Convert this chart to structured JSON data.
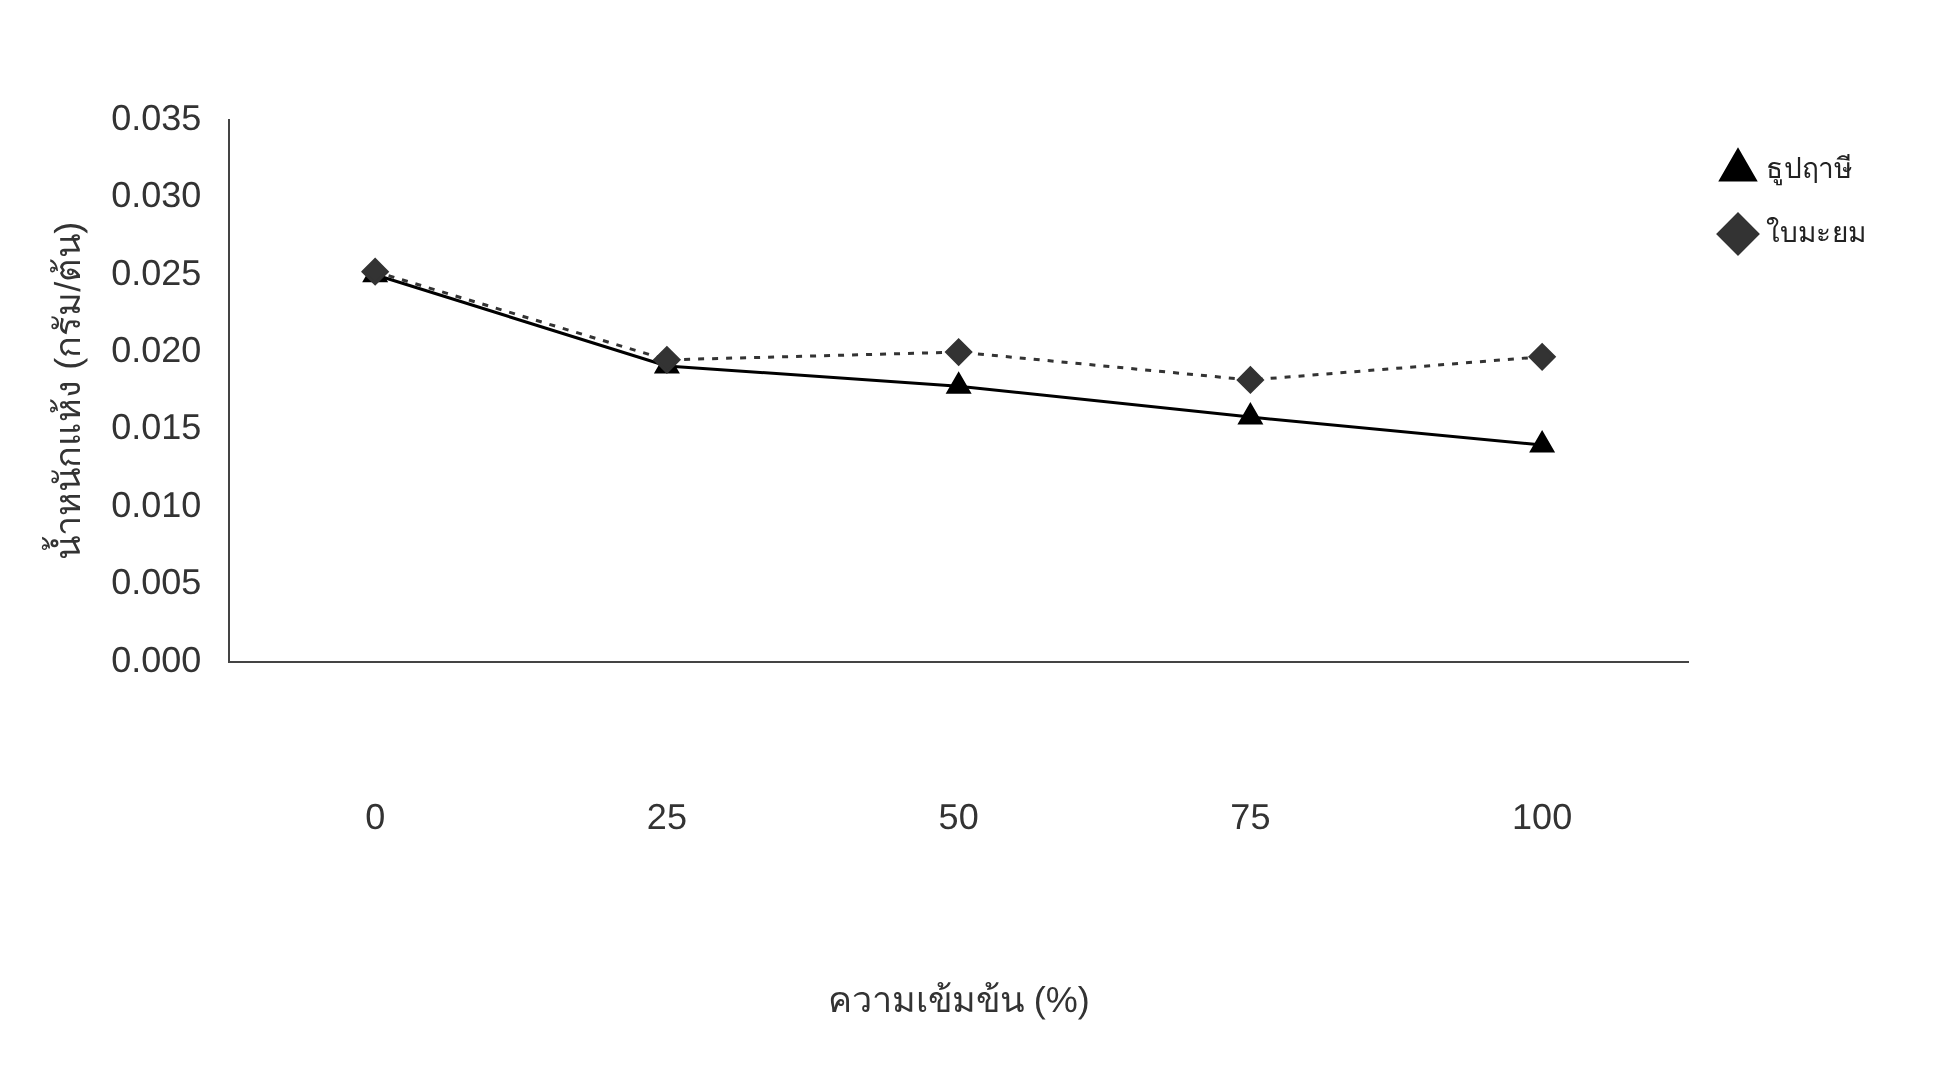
{
  "chart_data": {
    "type": "line",
    "xlabel": "ความเข้มข้น (%)",
    "ylabel": "น้ำหนักแห้ง (กรัม/ต้น)",
    "categories": [
      "0",
      "25",
      "50",
      "75",
      "100"
    ],
    "series": [
      {
        "name": "ธูปฤาษี",
        "color": "#000000",
        "values": [
          0.025,
          0.0191,
          0.0178,
          0.0158,
          0.014
        ],
        "marker": "triangle",
        "line_style": "solid"
      },
      {
        "name": "ใบมะยม",
        "color": "#333333",
        "values": [
          0.0252,
          0.0195,
          0.02,
          0.0182,
          0.0197
        ],
        "marker": "diamond",
        "line_style": "dotted"
      }
    ],
    "ylim": [
      0,
      0.035
    ],
    "yticks": [
      {
        "value": 0,
        "label": "0.000"
      },
      0.005,
      {
        "value": 0.01,
        "label": "0.010"
      },
      0.015,
      {
        "value": 0.02,
        "label": "0.020"
      },
      0.025,
      {
        "value": 0.03,
        "label": "0.030"
      },
      0.035
    ],
    "grid": false,
    "legend": "top right"
  }
}
